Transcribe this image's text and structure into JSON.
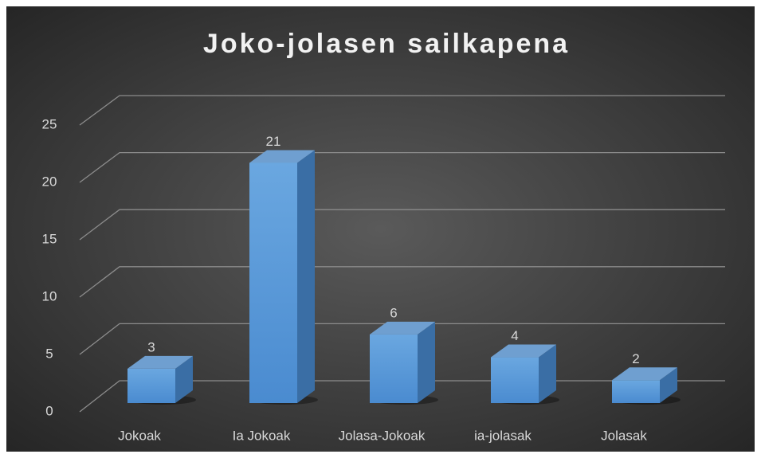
{
  "chart_data": {
    "type": "bar",
    "title": "Joko-jolasen sailkapena",
    "categories": [
      "Jokoak",
      "Ia Jokoak",
      "Jolasa-Jokoak",
      "ia-jolasak",
      "Jolasak"
    ],
    "values": [
      3,
      21,
      6,
      4,
      2
    ],
    "color": "#5b9bd5",
    "ylim": [
      0,
      25
    ],
    "yticks": [
      0,
      5,
      10,
      15,
      20,
      25
    ],
    "grid": true
  }
}
